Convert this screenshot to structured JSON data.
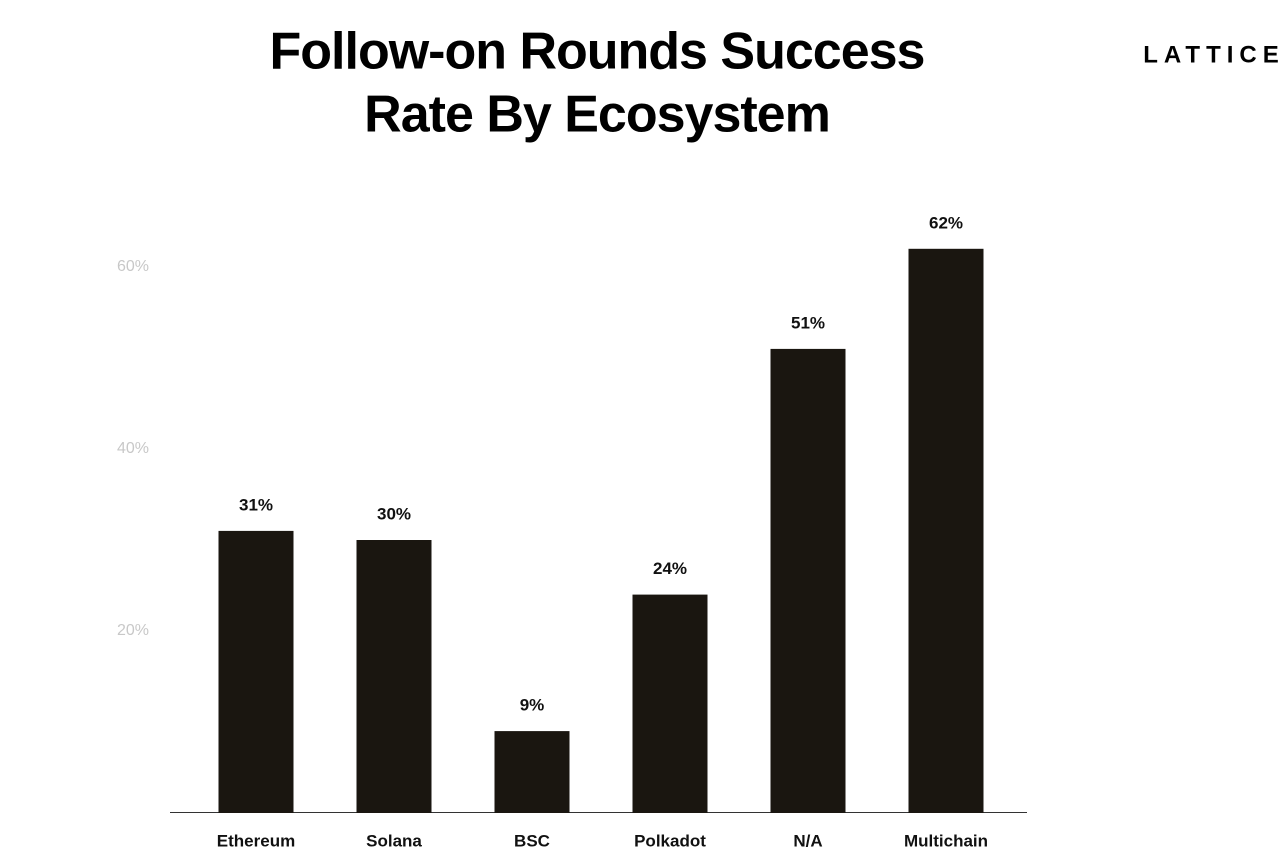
{
  "brand": "LATTICE",
  "chart_data": {
    "type": "bar",
    "title": [
      "Follow-on Rounds Success",
      "Rate By Ecosystem"
    ],
    "categories": [
      "Ethereum",
      "Solana",
      "BSC",
      "Polkadot",
      "N/A",
      "Multichain"
    ],
    "values": [
      31,
      30,
      9,
      24,
      51,
      62
    ],
    "value_labels": [
      "31%",
      "30%",
      "9%",
      "24%",
      "51%",
      "62%"
    ],
    "color": "#1a1610",
    "ylim": [
      0,
      65
    ],
    "yticks": [
      {
        "value": 20,
        "label": "20%"
      },
      {
        "value": 40,
        "label": "40%"
      },
      {
        "value": 60,
        "label": "60%"
      }
    ],
    "grid": false
  }
}
